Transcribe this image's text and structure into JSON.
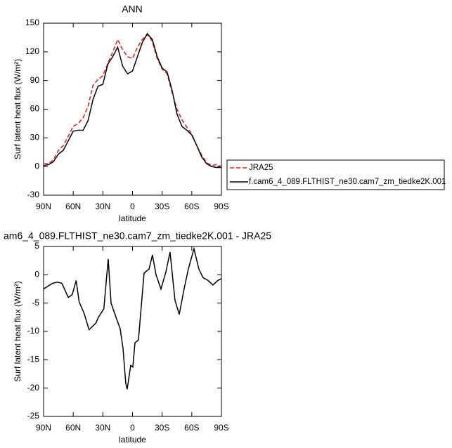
{
  "chart_data": [
    {
      "type": "line",
      "title": "ANN",
      "xlabel": "latitude",
      "ylabel": "Surf latent heat flux (W/m²)",
      "x": [
        90,
        85,
        80,
        75,
        70,
        65,
        60,
        55,
        50,
        45,
        40,
        35,
        30,
        25,
        20,
        15,
        10,
        5,
        0,
        -5,
        -10,
        -15,
        -20,
        -25,
        -30,
        -35,
        -40,
        -45,
        -50,
        -55,
        -60,
        -65,
        -70,
        -75,
        -80,
        -85,
        -90
      ],
      "series": [
        {
          "name": "JRA25",
          "color": "#e41a1c",
          "dash": true,
          "values": [
            3,
            3,
            7,
            17,
            22,
            32,
            42,
            45,
            51,
            63,
            85,
            91,
            95,
            108,
            120,
            133,
            122,
            115,
            113,
            125,
            133,
            138,
            131,
            113,
            102,
            97,
            78,
            60,
            49,
            41,
            34,
            22,
            12,
            4,
            1,
            2,
            0
          ]
        },
        {
          "name": "f.cam6_4_089.FLTHIST_ne30.cam7_zm_tiedke2K.001",
          "color": "#000000",
          "dash": false,
          "values": [
            1,
            2,
            5,
            13,
            17,
            27,
            37,
            38,
            38,
            48,
            70,
            84,
            86,
            107,
            115,
            125,
            105,
            97,
            100,
            115,
            130,
            139,
            133,
            115,
            103,
            99,
            80,
            55,
            42,
            38,
            33,
            22,
            10,
            3,
            0,
            -1,
            -1
          ]
        }
      ],
      "xlim": [
        90,
        -90
      ],
      "xticks": [
        {
          "value": 90,
          "label": "90N"
        },
        {
          "value": 60,
          "label": "60N"
        },
        {
          "value": 30,
          "label": "30N"
        },
        0,
        {
          "value": -30,
          "label": "30S"
        },
        {
          "value": -60,
          "label": "60S"
        },
        {
          "value": -90,
          "label": "90S"
        }
      ],
      "ylim": [
        -30,
        150
      ],
      "yticks": [
        -30,
        0,
        30,
        60,
        90,
        120,
        150
      ]
    },
    {
      "type": "line",
      "title": "am6_4_089.FLTHIST_ne30.cam7_zm_tiedke2K.001 - JRA25",
      "xlabel": "latitude",
      "ylabel": "Surf latent heat flux (W/m²)",
      "x": [
        90,
        81,
        76,
        71.5,
        65,
        61,
        57,
        54,
        49,
        44,
        37,
        34.5,
        29,
        24.6,
        21.7,
        16.7,
        12.5,
        9.6,
        6.8,
        5.4,
        1.8,
        -0.3,
        -2.5,
        -6,
        -11.7,
        -16.7,
        -20.2,
        -23.8,
        -28.8,
        -33.8,
        -38,
        -43,
        -47.3,
        -52.2,
        -56.5,
        -62.2,
        -67.2,
        -71.4,
        -76.4,
        -81.4,
        -86.4,
        -90
      ],
      "values": [
        -2.5,
        -1.5,
        -1.3,
        -1.5,
        -4,
        -3.5,
        -1,
        -4.8,
        -6.8,
        -9.7,
        -8.5,
        -7.5,
        -6,
        2.8,
        -5,
        -7.5,
        -9.5,
        -13,
        -19.2,
        -20.2,
        -16,
        -16.3,
        -12,
        -11.5,
        0.3,
        1,
        3.5,
        0,
        -2.5,
        0.5,
        4,
        -4.5,
        -7,
        -2.5,
        1,
        4.6,
        1,
        -0.5,
        -1,
        -1.8,
        -1,
        -0.7
      ],
      "color": "#000000",
      "xlim": [
        90,
        -90
      ],
      "xticks": [
        {
          "value": 90,
          "label": "90N"
        },
        {
          "value": 60,
          "label": "60N"
        },
        {
          "value": 30,
          "label": "30N"
        },
        0,
        {
          "value": -30,
          "label": "30S"
        },
        {
          "value": -60,
          "label": "60S"
        },
        {
          "value": -90,
          "label": "90S"
        }
      ],
      "ylim": [
        -25,
        5
      ],
      "yticks": [
        -25,
        -20,
        -15,
        -10,
        -5,
        0,
        5
      ]
    }
  ]
}
